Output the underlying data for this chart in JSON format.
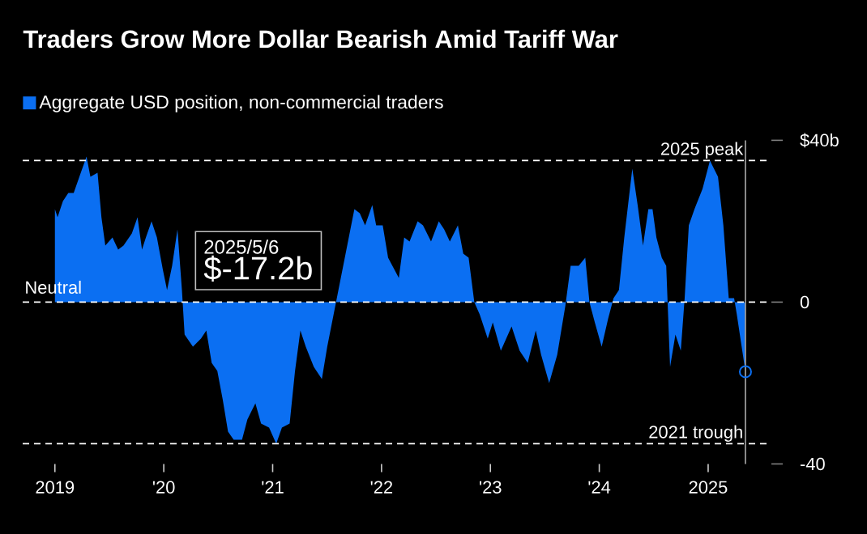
{
  "chart_data": {
    "type": "area",
    "title": "Traders Grow More Dollar Bearish Amid Tariff War",
    "x": [
      "2019-01-01",
      "2019-01-10",
      "2019-01-28",
      "2019-02-15",
      "2019-03-05",
      "2019-03-24",
      "2019-04-17",
      "2019-04-30",
      "2019-05-24",
      "2019-06-06",
      "2019-06-19",
      "2019-07-13",
      "2019-08-01",
      "2019-08-19",
      "2019-09-16",
      "2019-10-05",
      "2019-10-20",
      "2019-11-02",
      "2019-11-21",
      "2019-12-09",
      "2019-12-29",
      "2020-01-12",
      "2020-01-29",
      "2020-02-16",
      "2020-03-02",
      "2020-03-11",
      "2020-04-08",
      "2020-05-05",
      "2020-05-23",
      "2020-06-10",
      "2020-06-29",
      "2020-07-17",
      "2020-08-04",
      "2020-08-23",
      "2020-09-20",
      "2020-10-08",
      "2020-11-04",
      "2020-11-23",
      "2020-12-20",
      "2021-01-13",
      "2021-02-01",
      "2021-02-27",
      "2021-03-17",
      "2021-04-04",
      "2021-04-22",
      "2021-05-19",
      "2021-06-15",
      "2021-07-03",
      "2021-10-02",
      "2021-10-20",
      "2021-11-07",
      "2021-12-01",
      "2021-12-14",
      "2022-01-05",
      "2022-01-23",
      "2022-02-28",
      "2022-03-18",
      "2022-04-05",
      "2022-05-02",
      "2022-05-20",
      "2022-06-16",
      "2022-07-12",
      "2022-07-30",
      "2022-08-18",
      "2022-09-14",
      "2022-10-02",
      "2022-10-20",
      "2022-11-08",
      "2022-11-26",
      "2022-12-23",
      "2023-01-09",
      "2023-02-05",
      "2023-03-13",
      "2023-04-09",
      "2023-05-06",
      "2023-06-02",
      "2023-06-20",
      "2023-07-17",
      "2023-08-13",
      "2023-09-09",
      "2023-09-27",
      "2023-10-24",
      "2023-11-15",
      "2023-11-29",
      "2023-12-17",
      "2024-01-09",
      "2024-01-31",
      "2024-02-18",
      "2024-03-07",
      "2024-03-25",
      "2024-04-21",
      "2024-05-09",
      "2024-05-27",
      "2024-06-14",
      "2024-06-28",
      "2024-07-11",
      "2024-07-29",
      "2024-08-13",
      "2024-08-26",
      "2024-09-13",
      "2024-10-01",
      "2024-10-14",
      "2024-10-28",
      "2024-11-16",
      "2024-12-13",
      "2025-01-07",
      "2025-02-03",
      "2025-02-21",
      "2025-03-11",
      "2025-03-29",
      "2025-04-07",
      "2025-05-06"
    ],
    "series": [
      {
        "name": "Aggregate USD position, non-commercial traders",
        "color": "#0b6ff2",
        "values": [
          23,
          21,
          25,
          27,
          27,
          31,
          36,
          31,
          32,
          21,
          14,
          16,
          13,
          14,
          17,
          21,
          13,
          16,
          20,
          16,
          8,
          3,
          9,
          18,
          3,
          -8,
          -11,
          -9,
          -7,
          -15,
          -17,
          -24,
          -32,
          -34,
          -34,
          -29,
          -25,
          -30,
          -31,
          -35,
          -31,
          -30,
          -17,
          -7,
          -11,
          -16,
          -19,
          -11,
          23,
          22,
          19,
          24,
          19,
          19,
          11,
          6,
          16,
          15,
          20,
          19,
          15,
          20,
          18,
          15,
          19,
          12,
          11,
          0,
          -3,
          -9,
          -5,
          -12,
          -6,
          -12,
          -15,
          -7,
          -13,
          -20,
          -13,
          -1,
          9,
          9,
          11,
          0,
          -5,
          -11,
          -4,
          1,
          3,
          16,
          33,
          24,
          14,
          23,
          23,
          16,
          11,
          9,
          -16,
          -8,
          -12,
          1,
          19,
          23,
          28,
          35,
          31,
          19,
          1,
          1,
          -3,
          -17.2
        ]
      },
      {
        "type": "scatter",
        "marker": "circle",
        "color": "#0b6ff2",
        "x": [
          "2025-05-06"
        ],
        "values": [
          -17.2
        ]
      }
    ],
    "xlim": [
      "2018-09-15",
      "2025-08-01"
    ],
    "xticks": [
      {
        "value": "2019-01-01",
        "label": "2019"
      },
      {
        "value": "2020-01-01",
        "label": "'20"
      },
      {
        "value": "2021-01-01",
        "label": "'21"
      },
      {
        "value": "2022-01-01",
        "label": "'22"
      },
      {
        "value": "2023-01-01",
        "label": "'23"
      },
      {
        "value": "2024-01-01",
        "label": "'24"
      },
      {
        "value": "2025-01-01",
        "label": "2025"
      }
    ],
    "ylim": [
      -40,
      40
    ],
    "yticks": [
      {
        "value": 40,
        "label": "$40b"
      },
      0,
      -40
    ],
    "ref_lines": [
      {
        "axis": "y",
        "value": 0,
        "label": "Neutral",
        "color": "#ffffff",
        "line_style": "dashed"
      },
      {
        "axis": "y",
        "value": 35,
        "label": "2025 peak",
        "color": "#ffffff",
        "line_style": "dashed"
      },
      {
        "axis": "y",
        "value": -35,
        "label": "2021 trough",
        "color": "#ffffff",
        "line_style": "dashed"
      },
      {
        "axis": "x",
        "value": "2025-05-06",
        "color": "#999999",
        "line_style": "solid"
      }
    ],
    "annotations": [
      "2025/5/6",
      "$-17.2b"
    ],
    "legend": "top left"
  }
}
